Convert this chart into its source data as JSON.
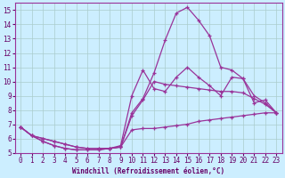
{
  "xlabel": "Windchill (Refroidissement éolien,°C)",
  "bg_color": "#cceeff",
  "grid_color": "#aacccc",
  "line_color": "#993399",
  "xlim": [
    -0.5,
    23.5
  ],
  "ylim": [
    5,
    15.5
  ],
  "yticks": [
    5,
    6,
    7,
    8,
    9,
    10,
    11,
    12,
    13,
    14,
    15
  ],
  "xticks": [
    0,
    1,
    2,
    3,
    4,
    5,
    6,
    7,
    8,
    9,
    10,
    11,
    12,
    13,
    14,
    15,
    16,
    17,
    18,
    19,
    20,
    21,
    22,
    23
  ],
  "line1_x": [
    0,
    1,
    2,
    3,
    4,
    5,
    6,
    7,
    8,
    9,
    10,
    11,
    12,
    13,
    14,
    15,
    16,
    17,
    18,
    19,
    20,
    21,
    22,
    23
  ],
  "line1_y": [
    6.8,
    6.2,
    5.8,
    5.5,
    5.3,
    5.2,
    5.2,
    5.2,
    5.3,
    5.4,
    6.6,
    6.7,
    6.7,
    6.8,
    6.9,
    7.0,
    7.2,
    7.3,
    7.4,
    7.5,
    7.6,
    7.7,
    7.8,
    7.8
  ],
  "line2_x": [
    0,
    1,
    2,
    3,
    4,
    5,
    6,
    7,
    8,
    9,
    10,
    11,
    12,
    13,
    14,
    15,
    16,
    17,
    18,
    19,
    20,
    21,
    22,
    23
  ],
  "line2_y": [
    6.8,
    6.2,
    6.0,
    5.8,
    5.6,
    5.4,
    5.3,
    5.3,
    5.3,
    5.4,
    7.6,
    8.7,
    10.0,
    9.8,
    9.7,
    9.6,
    9.5,
    9.4,
    9.3,
    9.3,
    9.2,
    8.8,
    8.4,
    7.8
  ],
  "line3_x": [
    0,
    1,
    2,
    3,
    4,
    5,
    6,
    7,
    8,
    9,
    10,
    11,
    12,
    13,
    14,
    15,
    16,
    17,
    18,
    19,
    20,
    21,
    22,
    23
  ],
  "line3_y": [
    6.8,
    6.2,
    5.8,
    5.5,
    5.3,
    5.2,
    5.2,
    5.2,
    5.3,
    5.5,
    9.0,
    10.8,
    9.5,
    9.3,
    10.3,
    11.0,
    10.3,
    9.7,
    9.0,
    10.3,
    10.2,
    8.5,
    8.7,
    7.8
  ],
  "line4_x": [
    0,
    1,
    2,
    3,
    4,
    5,
    6,
    7,
    8,
    9,
    10,
    11,
    12,
    13,
    14,
    15,
    16,
    17,
    18,
    19,
    20,
    21,
    22,
    23
  ],
  "line4_y": [
    6.8,
    6.2,
    6.0,
    5.8,
    5.6,
    5.4,
    5.3,
    5.3,
    5.3,
    5.4,
    7.8,
    8.8,
    10.6,
    12.9,
    14.8,
    15.2,
    14.3,
    13.2,
    11.0,
    10.8,
    10.2,
    9.0,
    8.5,
    7.8
  ]
}
